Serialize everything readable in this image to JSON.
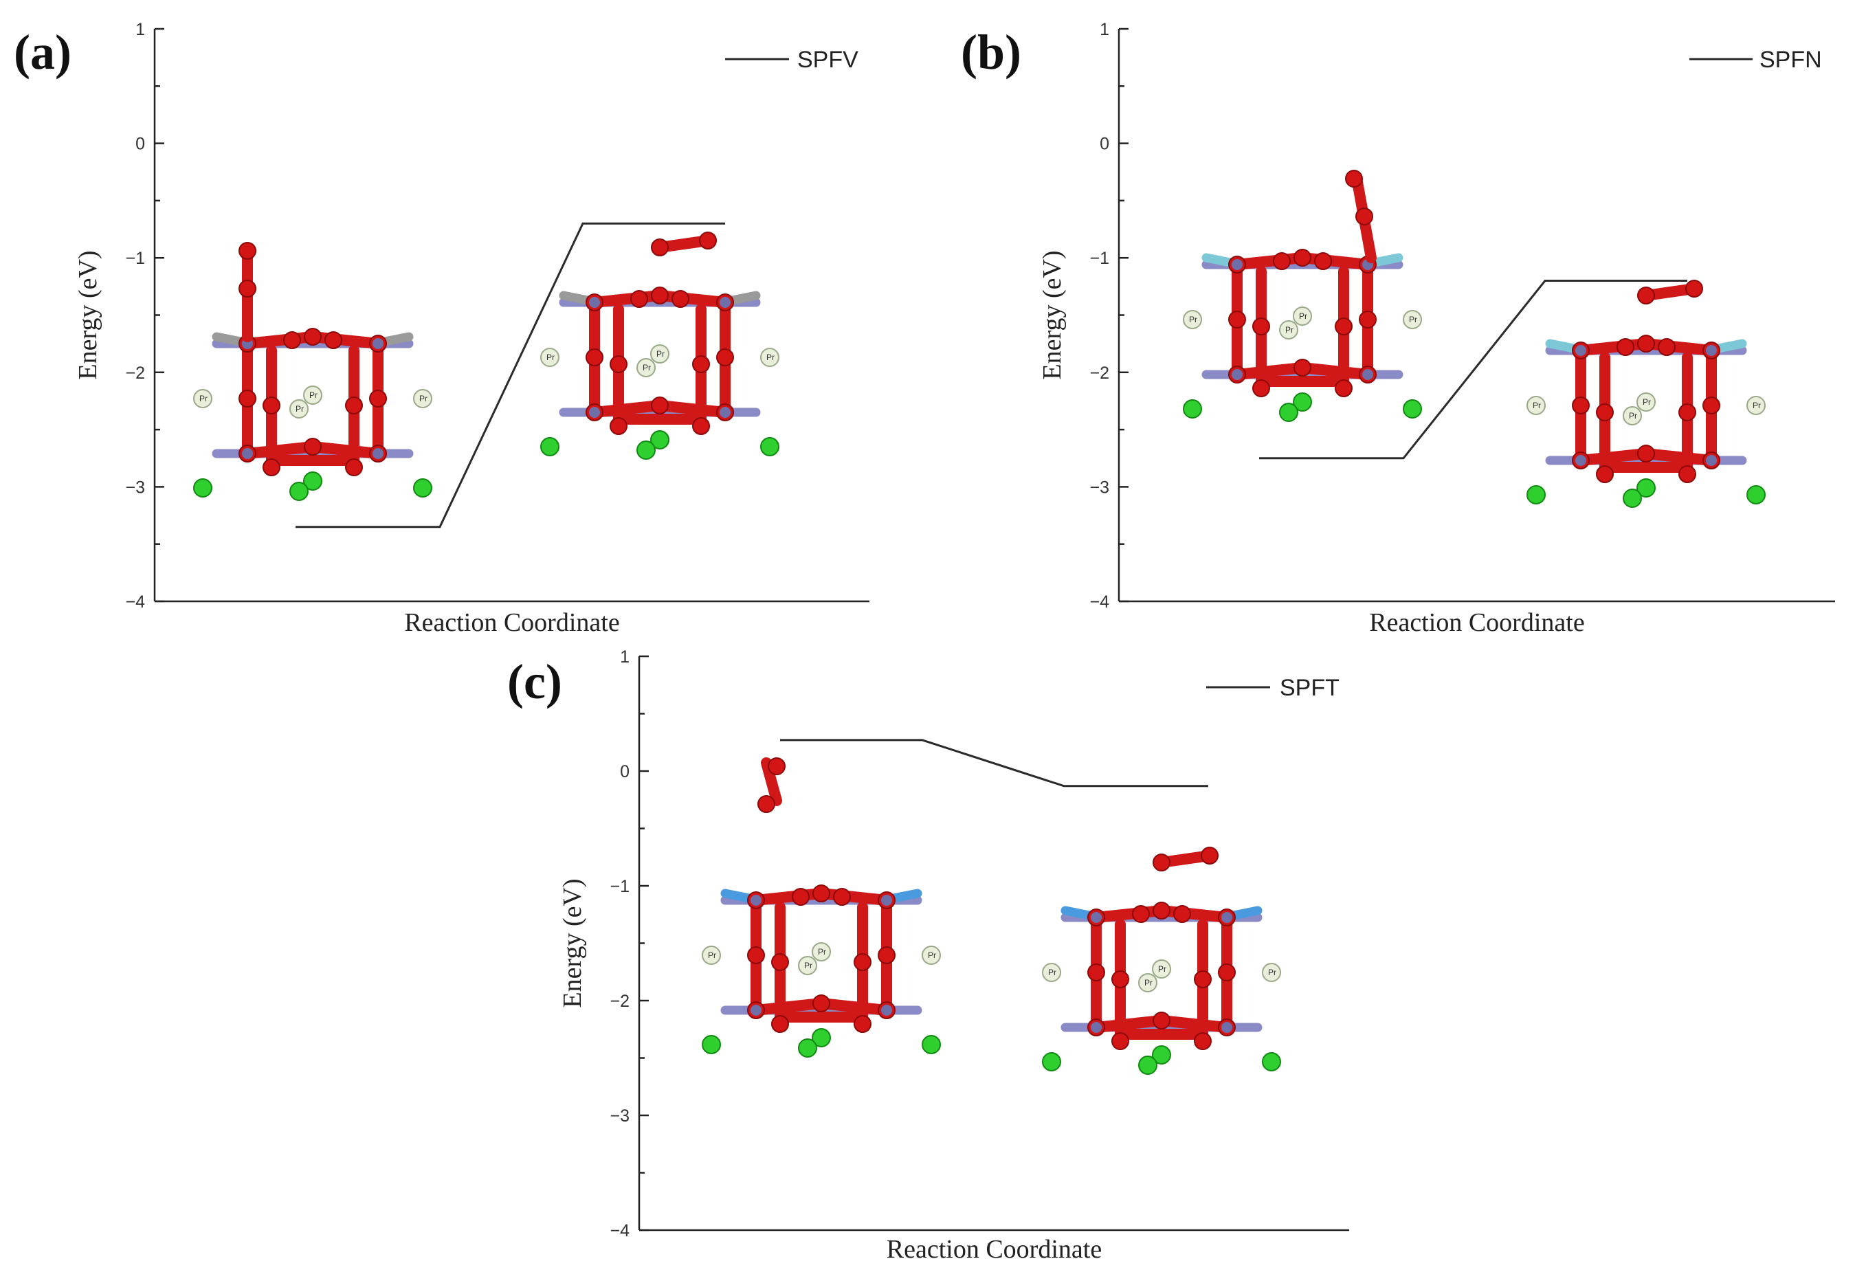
{
  "chart_data": [
    {
      "type": "line",
      "panel": "(a)",
      "ylabel": "Energy (eV)",
      "xlabel": "Reaction Coordinate",
      "ylim": [
        -4,
        1
      ],
      "yticks": [
        "1",
        "0",
        "−1",
        "−2",
        "−3",
        "−4"
      ],
      "series": [
        {
          "name": "SPFV",
          "x": [
            0,
            1,
            2,
            3
          ],
          "y": [
            -3.35,
            -3.35,
            -0.7,
            -0.7
          ]
        }
      ],
      "legend_position": "top-right"
    },
    {
      "type": "line",
      "panel": "(b)",
      "ylabel": "Energy (eV)",
      "xlabel": "Reaction Coordinate",
      "ylim": [
        -4,
        1
      ],
      "yticks": [
        "1",
        "0",
        "−1",
        "−2",
        "−3",
        "−4"
      ],
      "series": [
        {
          "name": "SPFN",
          "x": [
            0,
            1,
            2,
            3
          ],
          "y": [
            -2.75,
            -2.75,
            -1.2,
            -1.2
          ]
        }
      ],
      "legend_position": "top-right"
    },
    {
      "type": "line",
      "panel": "(c)",
      "ylabel": "Energy (eV)",
      "xlabel": "Reaction Coordinate",
      "ylim": [
        -4,
        1
      ],
      "yticks": [
        "1",
        "0",
        "−1",
        "−2",
        "−3",
        "−4"
      ],
      "series": [
        {
          "name": "SPFT",
          "x": [
            0,
            1,
            2,
            3
          ],
          "y": [
            0.27,
            0.27,
            -0.13,
            -0.13
          ]
        }
      ],
      "legend_position": "top-right"
    }
  ],
  "atom_label": "Pr",
  "colors": {
    "oxygen": "#d41515",
    "transition_metal": "#8a8ac6",
    "praseodymium": "#e8f0dc",
    "strontium": "#2fcf2f",
    "dopant_v": "#9a9a9a",
    "dopant_n": "#7cc8d6",
    "dopant_t": "#4a9ae0"
  }
}
